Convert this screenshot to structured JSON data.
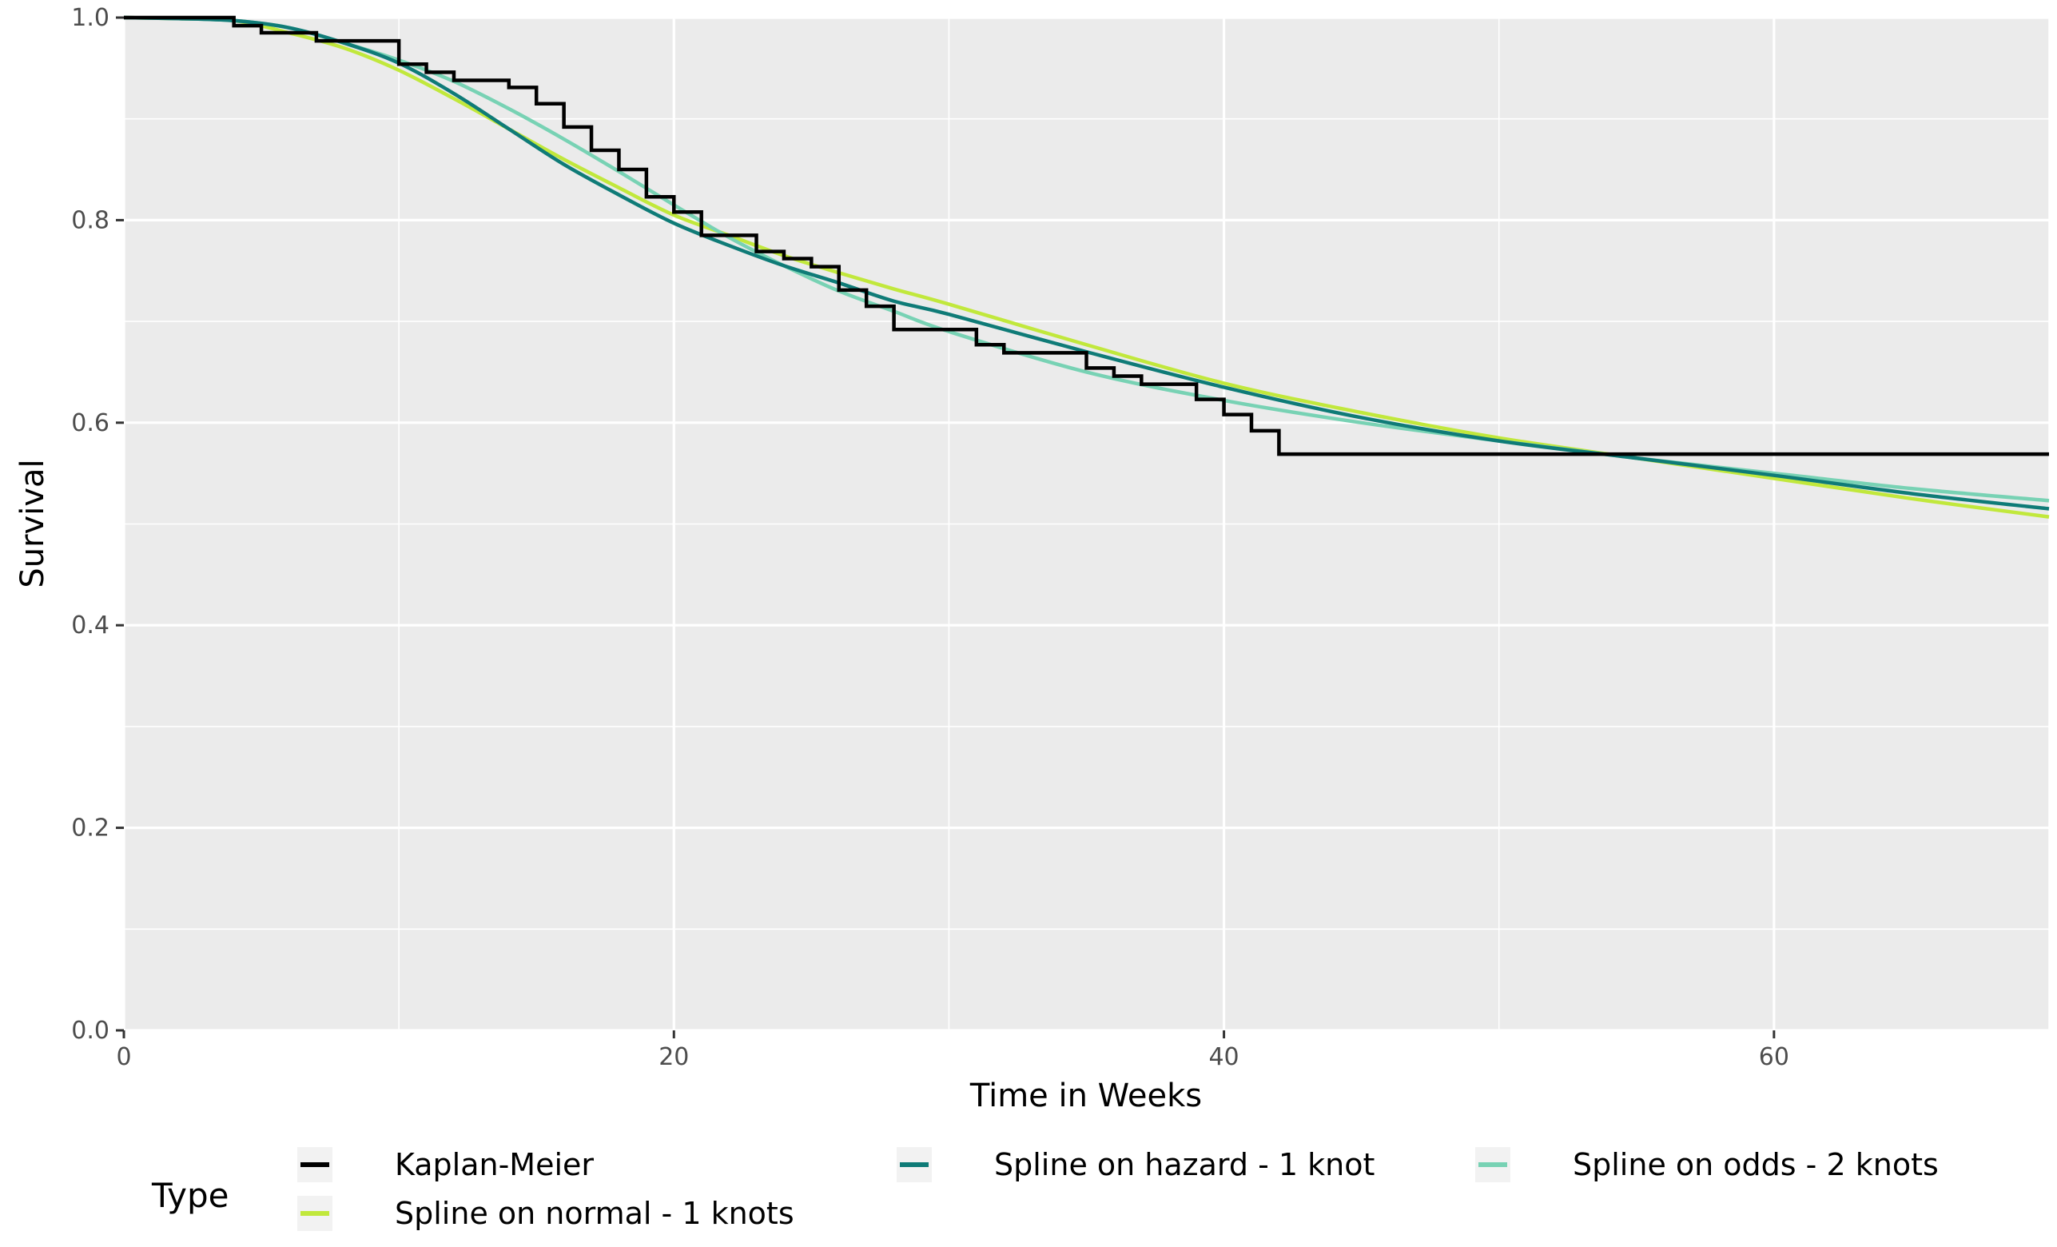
{
  "chart_data": {
    "type": "line",
    "xlabel": "Time in Weeks",
    "ylabel": "Survival",
    "xlim": [
      0,
      70
    ],
    "ylim": [
      0,
      1
    ],
    "x_ticks": [
      0,
      20,
      40,
      60
    ],
    "x_tick_labels": [
      "0",
      "20",
      "40",
      "60"
    ],
    "y_ticks": [
      0,
      0.2,
      0.4,
      0.6,
      0.8,
      1.0
    ],
    "y_tick_labels": [
      "0.0",
      "0.2",
      "0.4",
      "0.6",
      "0.8",
      "1.0"
    ],
    "grid": true,
    "background": "#ebebeb",
    "legend": {
      "title": "Type",
      "position": "bottom"
    },
    "series": [
      {
        "name": "Kaplan-Meier",
        "style": "step",
        "color": "#000000",
        "x": [
          0,
          4,
          5,
          7,
          10,
          11,
          12,
          14,
          15,
          16,
          17,
          18,
          19,
          20,
          21,
          23,
          24,
          25,
          26,
          27,
          28,
          31,
          32,
          35,
          36,
          37,
          39,
          40,
          41,
          42,
          70
        ],
        "y": [
          1.0,
          0.992,
          0.985,
          0.977,
          0.954,
          0.946,
          0.938,
          0.931,
          0.915,
          0.892,
          0.869,
          0.85,
          0.823,
          0.808,
          0.785,
          0.769,
          0.762,
          0.754,
          0.731,
          0.715,
          0.692,
          0.677,
          0.669,
          0.654,
          0.646,
          0.638,
          0.623,
          0.608,
          0.592,
          0.569,
          0.569
        ]
      },
      {
        "name": "Spline on normal - 1 knots",
        "style": "line",
        "color": "#c1e83c",
        "x": [
          0,
          2,
          4,
          6,
          8,
          10,
          12,
          14,
          16,
          18,
          20,
          22,
          24,
          26,
          28,
          30,
          35,
          40,
          45,
          50,
          55,
          60,
          65,
          70
        ],
        "y": [
          1.0,
          0.999,
          0.997,
          0.985,
          0.97,
          0.948,
          0.92,
          0.89,
          0.86,
          0.832,
          0.805,
          0.785,
          0.765,
          0.748,
          0.732,
          0.717,
          0.677,
          0.639,
          0.61,
          0.585,
          0.565,
          0.545,
          0.525,
          0.507
        ]
      },
      {
        "name": "Spline on hazard - 1 knot",
        "style": "line",
        "color": "#0f7b77",
        "x": [
          0,
          2,
          4,
          6,
          8,
          10,
          12,
          14,
          16,
          18,
          20,
          22,
          24,
          26,
          28,
          30,
          35,
          40,
          45,
          50,
          55,
          60,
          65,
          70
        ],
        "y": [
          1.0,
          0.999,
          0.997,
          0.99,
          0.975,
          0.955,
          0.925,
          0.89,
          0.855,
          0.825,
          0.797,
          0.775,
          0.755,
          0.738,
          0.72,
          0.707,
          0.67,
          0.635,
          0.605,
          0.582,
          0.565,
          0.548,
          0.53,
          0.515
        ]
      },
      {
        "name": "Spline on odds - 2 knots",
        "style": "line",
        "color": "#78d2b4",
        "x": [
          0,
          2,
          4,
          6,
          8,
          10,
          12,
          14,
          16,
          18,
          20,
          22,
          24,
          26,
          28,
          30,
          35,
          40,
          45,
          50,
          55,
          60,
          65,
          70
        ],
        "y": [
          1.0,
          0.999,
          0.997,
          0.99,
          0.975,
          0.958,
          0.937,
          0.91,
          0.88,
          0.848,
          0.815,
          0.783,
          0.755,
          0.73,
          0.71,
          0.69,
          0.65,
          0.622,
          0.6,
          0.582,
          0.565,
          0.55,
          0.535,
          0.523
        ]
      }
    ]
  }
}
